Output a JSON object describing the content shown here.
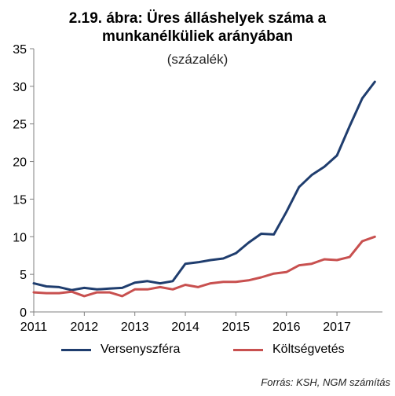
{
  "title_line1": "2.19. ábra: Üres álláshelyek száma a",
  "title_line2": "munkanélküliek arányában",
  "subtitle": "(százalék)",
  "source": "Forrás: KSH, NGM számítás",
  "colors": {
    "versenyszfera": "#1f3d6e",
    "koltsegvetes": "#c8504f",
    "axis": "#808080"
  },
  "chart_data": {
    "type": "line",
    "ylim": [
      0,
      35
    ],
    "yticks": [
      0,
      5,
      10,
      15,
      20,
      25,
      30,
      35
    ],
    "xlim": [
      2011,
      2017.9
    ],
    "xticks": [
      2011,
      2012,
      2013,
      2014,
      2015,
      2016,
      2017
    ],
    "grid": false,
    "legend_position": "bottom",
    "series": [
      {
        "name": "Versenyszféra",
        "x": [
          2011.0,
          2011.25,
          2011.5,
          2011.75,
          2012.0,
          2012.25,
          2012.5,
          2012.75,
          2013.0,
          2013.25,
          2013.5,
          2013.75,
          2014.0,
          2014.25,
          2014.5,
          2014.75,
          2015.0,
          2015.25,
          2015.5,
          2015.75,
          2016.0,
          2016.25,
          2016.5,
          2016.75,
          2017.0,
          2017.25,
          2017.5,
          2017.75
        ],
        "values": [
          3.8,
          3.4,
          3.3,
          2.9,
          3.2,
          3.0,
          3.1,
          3.2,
          3.9,
          4.1,
          3.8,
          4.1,
          6.4,
          6.6,
          6.9,
          7.1,
          7.8,
          9.2,
          10.4,
          10.3,
          13.3,
          16.6,
          18.2,
          19.3,
          20.8,
          24.7,
          28.4,
          30.6
        ]
      },
      {
        "name": "Költségvetés",
        "x": [
          2011.0,
          2011.25,
          2011.5,
          2011.75,
          2012.0,
          2012.25,
          2012.5,
          2012.75,
          2013.0,
          2013.25,
          2013.5,
          2013.75,
          2014.0,
          2014.25,
          2014.5,
          2014.75,
          2015.0,
          2015.25,
          2015.5,
          2015.75,
          2016.0,
          2016.25,
          2016.5,
          2016.75,
          2017.0,
          2017.25,
          2017.5,
          2017.75
        ],
        "values": [
          2.6,
          2.5,
          2.5,
          2.7,
          2.1,
          2.6,
          2.6,
          2.1,
          3.0,
          3.0,
          3.3,
          3.0,
          3.6,
          3.3,
          3.8,
          4.0,
          4.0,
          4.2,
          4.6,
          5.1,
          5.3,
          6.2,
          6.4,
          7.0,
          6.9,
          7.3,
          9.4,
          10.0
        ]
      }
    ]
  }
}
